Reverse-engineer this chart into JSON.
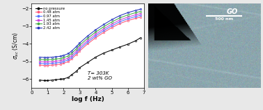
{
  "title": "",
  "xlabel": "log f (Hz)",
  "ylabel": "σ_ac (S/cm)",
  "xlim": [
    0.3,
    7.0
  ],
  "ylim": [
    -6.5,
    -1.7
  ],
  "yticks": [
    -6,
    -5,
    -4,
    -3,
    -2
  ],
  "xticks": [
    0,
    1,
    2,
    3,
    4,
    5,
    6,
    7
  ],
  "annotation": "T= 303K\n2 wt% GO",
  "series": [
    {
      "label": "no pressure",
      "color": "#000000",
      "x": [
        0.5,
        0.8,
        1.0,
        1.3,
        1.5,
        1.8,
        2.0,
        2.3,
        2.5,
        2.8,
        3.0,
        3.5,
        4.0,
        4.5,
        5.0,
        5.5,
        6.0,
        6.5,
        6.8
      ],
      "y": [
        -6.05,
        -6.08,
        -6.08,
        -6.05,
        -6.03,
        -6.0,
        -5.98,
        -5.9,
        -5.75,
        -5.55,
        -5.35,
        -5.05,
        -4.75,
        -4.52,
        -4.35,
        -4.18,
        -4.02,
        -3.82,
        -3.65
      ]
    },
    {
      "label": "0.48 atm",
      "color": "#ff5577",
      "x": [
        0.5,
        0.8,
        1.0,
        1.3,
        1.5,
        1.8,
        2.0,
        2.3,
        2.5,
        2.8,
        3.0,
        3.5,
        4.0,
        4.5,
        5.0,
        5.5,
        6.0,
        6.5,
        6.8
      ],
      "y": [
        -5.2,
        -5.22,
        -5.22,
        -5.2,
        -5.18,
        -5.15,
        -5.1,
        -5.0,
        -4.85,
        -4.6,
        -4.4,
        -4.0,
        -3.65,
        -3.35,
        -3.08,
        -2.85,
        -2.68,
        -2.55,
        -2.48
      ]
    },
    {
      "label": "0.97 atm",
      "color": "#5577ff",
      "x": [
        0.5,
        0.8,
        1.0,
        1.3,
        1.5,
        1.8,
        2.0,
        2.3,
        2.5,
        2.8,
        3.0,
        3.5,
        4.0,
        4.5,
        5.0,
        5.5,
        6.0,
        6.5,
        6.8
      ],
      "y": [
        -5.1,
        -5.12,
        -5.12,
        -5.1,
        -5.08,
        -5.05,
        -5.0,
        -4.9,
        -4.75,
        -4.5,
        -4.3,
        -3.9,
        -3.55,
        -3.25,
        -2.98,
        -2.75,
        -2.58,
        -2.45,
        -2.38
      ]
    },
    {
      "label": "1.45 atm",
      "color": "#cc44dd",
      "x": [
        0.5,
        0.8,
        1.0,
        1.3,
        1.5,
        1.8,
        2.0,
        2.3,
        2.5,
        2.8,
        3.0,
        3.5,
        4.0,
        4.5,
        5.0,
        5.5,
        6.0,
        6.5,
        6.8
      ],
      "y": [
        -5.0,
        -5.02,
        -5.02,
        -5.0,
        -4.98,
        -4.95,
        -4.9,
        -4.8,
        -4.65,
        -4.4,
        -4.2,
        -3.8,
        -3.45,
        -3.15,
        -2.88,
        -2.65,
        -2.48,
        -2.35,
        -2.28
      ]
    },
    {
      "label": "1.93 atm",
      "color": "#44aa44",
      "x": [
        0.5,
        0.8,
        1.0,
        1.3,
        1.5,
        1.8,
        2.0,
        2.3,
        2.5,
        2.8,
        3.0,
        3.5,
        4.0,
        4.5,
        5.0,
        5.5,
        6.0,
        6.5,
        6.8
      ],
      "y": [
        -4.88,
        -4.9,
        -4.9,
        -4.88,
        -4.86,
        -4.83,
        -4.78,
        -4.68,
        -4.53,
        -4.28,
        -4.08,
        -3.68,
        -3.33,
        -3.03,
        -2.76,
        -2.53,
        -2.36,
        -2.23,
        -2.16
      ]
    },
    {
      "label": "2.42 atm",
      "color": "#2233bb",
      "x": [
        0.5,
        0.8,
        1.0,
        1.3,
        1.5,
        1.8,
        2.0,
        2.3,
        2.5,
        2.8,
        3.0,
        3.5,
        4.0,
        4.5,
        5.0,
        5.5,
        6.0,
        6.5,
        6.8
      ],
      "y": [
        -4.75,
        -4.77,
        -4.77,
        -4.75,
        -4.73,
        -4.7,
        -4.65,
        -4.55,
        -4.4,
        -4.15,
        -3.95,
        -3.55,
        -3.2,
        -2.9,
        -2.63,
        -2.4,
        -2.23,
        -2.1,
        -2.03
      ]
    }
  ],
  "fig_bg": "#e8e8e8",
  "plot_bg": "#ffffff",
  "tem_base_color": [
    0.55,
    0.65,
    0.68
  ],
  "tem_dark_color": [
    0.05,
    0.05,
    0.05
  ],
  "scalebar_text": "500 nm",
  "go_label": "GO"
}
